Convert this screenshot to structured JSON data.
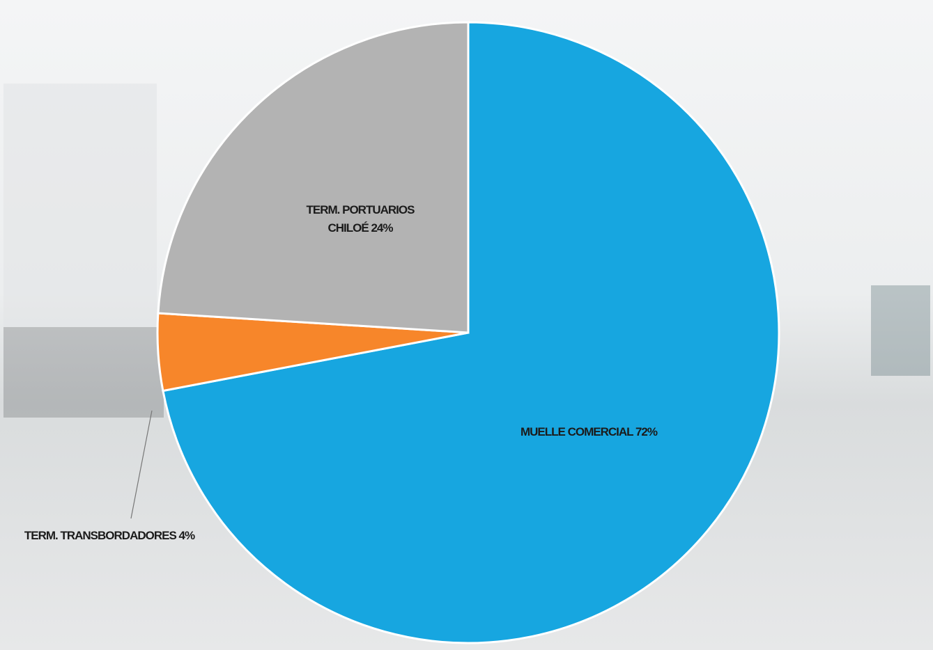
{
  "chart_data": {
    "type": "pie",
    "categories": [
      "MUELLE COMERCIAL",
      "TERM. TRANSBORDADORES",
      "TERM. PORTUARIOS CHILOÉ"
    ],
    "values": [
      72,
      4,
      24
    ],
    "value_labels": [
      "72%",
      "4%",
      "24%"
    ],
    "colors": [
      "#17a6e0",
      "#f7862a",
      "#b3b3b3"
    ]
  }
}
